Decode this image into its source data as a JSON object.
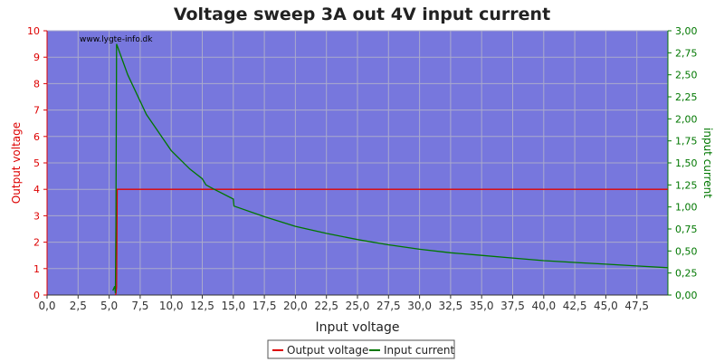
{
  "chart_data": {
    "type": "line",
    "title": "Voltage sweep 3A out 4V input current",
    "watermark": "www.lygte-info.dk",
    "xlabel": "Input voltage",
    "ylabel_left": "Output voltage",
    "ylabel_right": "input current",
    "xlim": [
      0,
      50
    ],
    "ylim_left": [
      0,
      10
    ],
    "ylim_right": [
      0,
      3
    ],
    "x_ticks": [
      "0,0",
      "2,5",
      "5,0",
      "7,5",
      "10,0",
      "12,5",
      "15,0",
      "17,5",
      "20,0",
      "22,5",
      "25,0",
      "27,5",
      "30,0",
      "32,5",
      "35,0",
      "37,5",
      "40,0",
      "42,5",
      "45,0",
      "47,5"
    ],
    "y_left_ticks": [
      "0",
      "1",
      "2",
      "3",
      "4",
      "5",
      "6",
      "7",
      "8",
      "9",
      "10"
    ],
    "y_right_ticks": [
      "0,00",
      "0,25",
      "0,50",
      "0,75",
      "1,00",
      "1,25",
      "1,50",
      "1,75",
      "2,00",
      "2,25",
      "2,50",
      "2,75",
      "3,00"
    ],
    "grid": true,
    "legend_position": "bottom-center",
    "colors": {
      "plot_bg": "#7777dd",
      "output": "#dd0000",
      "current": "#007700",
      "grid": "#aaaacc",
      "left_axis": "#dd0000",
      "right_axis": "#007700"
    },
    "series": [
      {
        "name": "Output voltage",
        "axis": "left",
        "x": [
          5.5,
          5.55,
          5.6,
          5.65,
          50
        ],
        "y": [
          0,
          0.05,
          0.3,
          4.0,
          4.0
        ]
      },
      {
        "name": "Input current",
        "axis": "right",
        "x": [
          5.3,
          5.45,
          5.5,
          5.55,
          5.6,
          6.5,
          8,
          10,
          11.5,
          12.5,
          12.8,
          13.2,
          15.0,
          15.05,
          17.5,
          20,
          22.5,
          25,
          27.5,
          30,
          32.5,
          35,
          37.5,
          40,
          42.5,
          45,
          47.5,
          50
        ],
        "y": [
          0.05,
          0.1,
          0.02,
          0.8,
          2.85,
          2.5,
          2.05,
          1.64,
          1.43,
          1.32,
          1.25,
          1.22,
          1.09,
          1.01,
          0.89,
          0.78,
          0.7,
          0.63,
          0.57,
          0.52,
          0.48,
          0.45,
          0.42,
          0.39,
          0.37,
          0.35,
          0.33,
          0.31
        ]
      }
    ]
  }
}
